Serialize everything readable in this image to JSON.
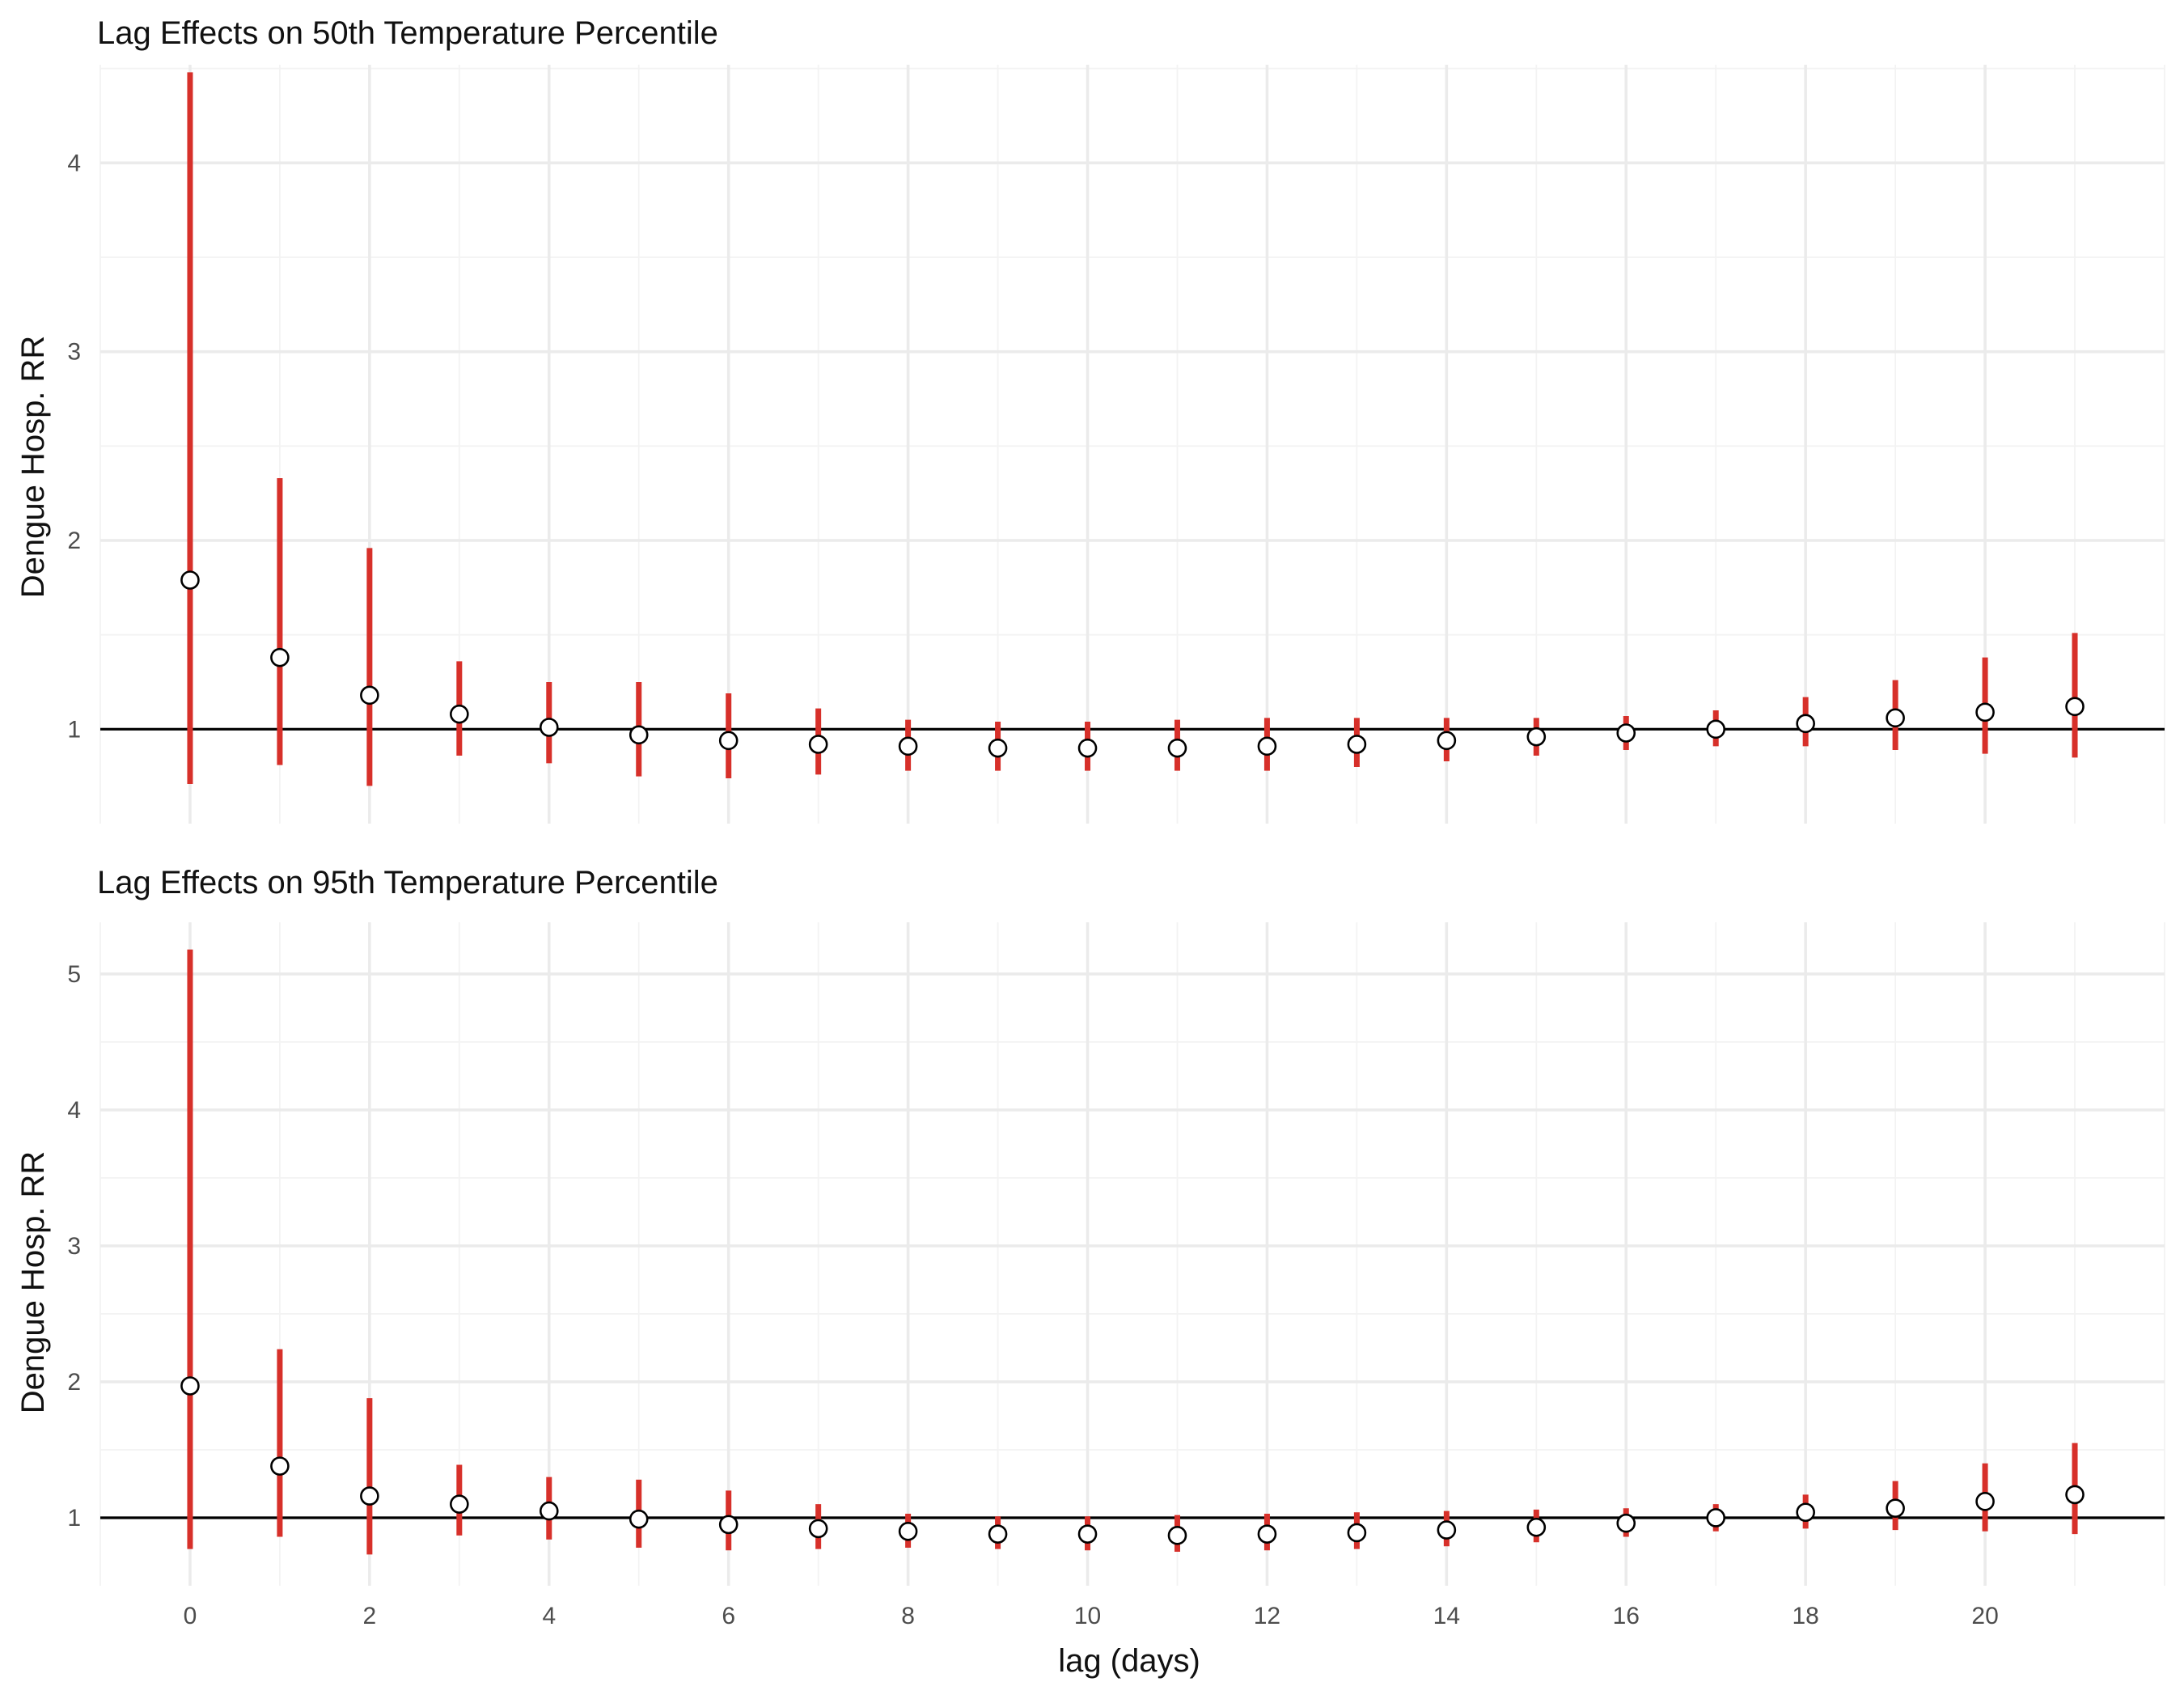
{
  "chart_data": [
    {
      "type": "scatter",
      "title": "Lag Effects on 50th Temperature Percentile",
      "xlabel": "",
      "ylabel": "Dengue Hosp. RR",
      "xlim": [
        -1,
        22
      ],
      "ylim": [
        0.5,
        4.52
      ],
      "yticks": [
        1,
        2,
        3,
        4
      ],
      "xticks": [
        0,
        2,
        4,
        6,
        8,
        10,
        12,
        14,
        16,
        18,
        20
      ],
      "show_x_tick_labels": false,
      "reference_line": 1,
      "grid": true,
      "x": [
        0,
        1,
        2,
        3,
        4,
        5,
        6,
        7,
        8,
        9,
        10,
        11,
        12,
        13,
        14,
        15,
        16,
        17,
        18,
        19,
        20,
        21
      ],
      "estimate": [
        1.79,
        1.38,
        1.18,
        1.08,
        1.01,
        0.97,
        0.94,
        0.92,
        0.91,
        0.9,
        0.9,
        0.9,
        0.91,
        0.92,
        0.94,
        0.96,
        0.98,
        1.0,
        1.03,
        1.06,
        1.09,
        1.12
      ],
      "lower": [
        0.71,
        0.81,
        0.7,
        0.86,
        0.82,
        0.75,
        0.74,
        0.76,
        0.78,
        0.78,
        0.78,
        0.78,
        0.78,
        0.8,
        0.83,
        0.86,
        0.89,
        0.91,
        0.91,
        0.89,
        0.87,
        0.85
      ],
      "upper": [
        4.48,
        2.33,
        1.96,
        1.36,
        1.25,
        1.25,
        1.19,
        1.11,
        1.05,
        1.04,
        1.04,
        1.05,
        1.06,
        1.06,
        1.06,
        1.06,
        1.07,
        1.1,
        1.17,
        1.26,
        1.38,
        1.51
      ],
      "colors": {
        "interval": "#d7302a",
        "point_fill": "#ffffff",
        "point_stroke": "#000000",
        "reference_line": "#000000"
      }
    },
    {
      "type": "scatter",
      "title": "Lag Effects on 95th Temperature Percentile",
      "xlabel": "lag (days)",
      "ylabel": "Dengue Hosp. RR",
      "xlim": [
        -1,
        22
      ],
      "ylim": [
        0.5,
        5.38
      ],
      "yticks": [
        1,
        2,
        3,
        4,
        5
      ],
      "xticks": [
        0,
        2,
        4,
        6,
        8,
        10,
        12,
        14,
        16,
        18,
        20
      ],
      "show_x_tick_labels": true,
      "reference_line": 1,
      "grid": true,
      "x": [
        0,
        1,
        2,
        3,
        4,
        5,
        6,
        7,
        8,
        9,
        10,
        11,
        12,
        13,
        14,
        15,
        16,
        17,
        18,
        19,
        20,
        21
      ],
      "estimate": [
        1.97,
        1.38,
        1.16,
        1.1,
        1.05,
        0.99,
        0.95,
        0.92,
        0.9,
        0.88,
        0.88,
        0.87,
        0.88,
        0.89,
        0.91,
        0.93,
        0.96,
        1.0,
        1.04,
        1.07,
        1.12,
        1.17
      ],
      "lower": [
        0.77,
        0.86,
        0.73,
        0.87,
        0.84,
        0.78,
        0.76,
        0.77,
        0.78,
        0.77,
        0.76,
        0.75,
        0.76,
        0.77,
        0.79,
        0.82,
        0.86,
        0.9,
        0.92,
        0.91,
        0.9,
        0.88
      ],
      "upper": [
        5.18,
        2.24,
        1.88,
        1.39,
        1.3,
        1.28,
        1.2,
        1.1,
        1.03,
        1.01,
        1.01,
        1.02,
        1.03,
        1.04,
        1.05,
        1.06,
        1.07,
        1.1,
        1.17,
        1.27,
        1.4,
        1.55
      ],
      "colors": {
        "interval": "#d7302a",
        "point_fill": "#ffffff",
        "point_stroke": "#000000",
        "reference_line": "#000000"
      }
    }
  ]
}
